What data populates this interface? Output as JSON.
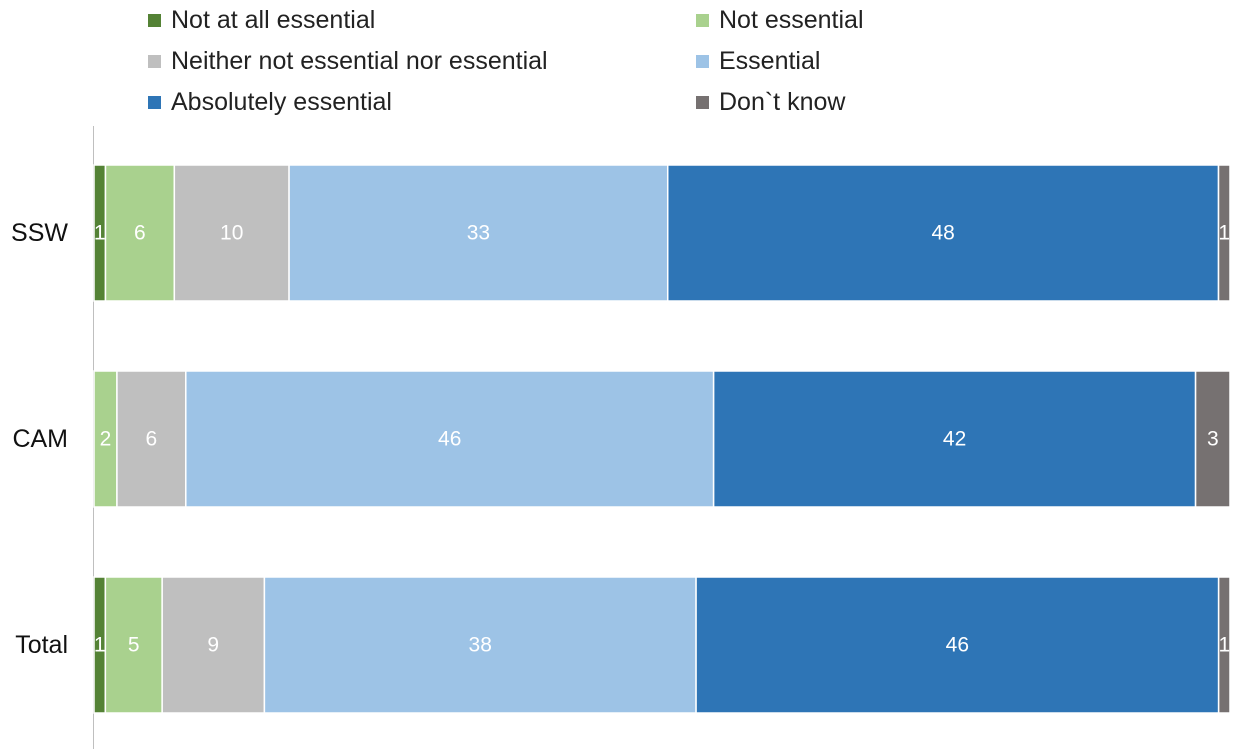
{
  "chart_data": {
    "type": "bar",
    "orientation": "horizontal",
    "stacked": true,
    "categories": [
      "SSW",
      "CAM",
      "Total"
    ],
    "series": [
      {
        "name": "Not at all essential",
        "color": "#548235",
        "values": [
          1,
          0,
          1
        ]
      },
      {
        "name": "Not essential",
        "color": "#A9D18E",
        "values": [
          6,
          2,
          5
        ]
      },
      {
        "name": "Neither not essential nor essential",
        "color": "#BFBFBF",
        "values": [
          10,
          6,
          9
        ]
      },
      {
        "name": "Essential",
        "color": "#9DC3E6",
        "values": [
          33,
          46,
          38
        ]
      },
      {
        "name": "Absolutely essential",
        "color": "#2E75B6",
        "values": [
          48,
          42,
          46
        ]
      },
      {
        "name": "Don`t know",
        "color": "#767171",
        "values": [
          1,
          3,
          1
        ]
      }
    ],
    "data_labels": true,
    "legend_position": "top",
    "grid": false,
    "title": "",
    "xlabel": "",
    "ylabel": ""
  }
}
